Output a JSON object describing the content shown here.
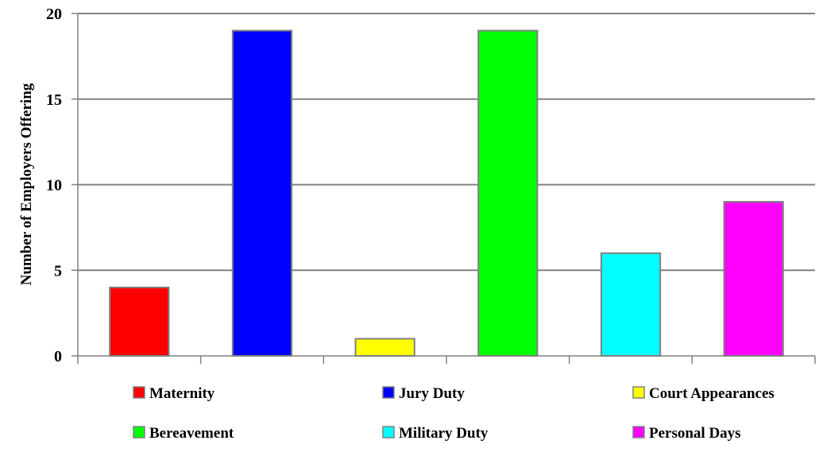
{
  "chart_data": {
    "type": "bar",
    "categories": [
      "Maternity",
      "Jury Duty",
      "Court Appearances",
      "Bereavement",
      "Military Duty",
      "Personal Days"
    ],
    "values": [
      4,
      19,
      1,
      19,
      6,
      9
    ],
    "colors": [
      "#ff0000",
      "#0000ff",
      "#ffff00",
      "#00ff00",
      "#00ffff",
      "#ff00ff"
    ],
    "xlabel": "",
    "ylabel": "Number of Employers Offering",
    "ylim": [
      0,
      20
    ],
    "yticks": [
      0,
      5,
      10,
      15,
      20
    ],
    "grid": true,
    "legend": {
      "position": "bottom",
      "entries": [
        "Maternity",
        "Jury Duty",
        "Court Appearances",
        "Bereavement",
        "Military Duty",
        "Personal Days"
      ]
    }
  }
}
